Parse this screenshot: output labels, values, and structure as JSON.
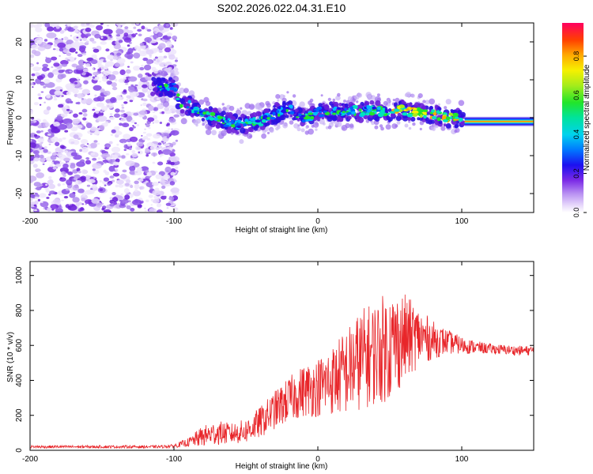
{
  "chart_data": [
    {
      "type": "heatmap",
      "title": "S202.2026.022.04.31.E10",
      "xlabel": "Height of straight line (km)",
      "ylabel": "Frequency (Hz)",
      "xlim": [
        -200,
        150
      ],
      "ylim": [
        -25,
        25
      ],
      "x_ticks": [
        -200,
        -100,
        0,
        100
      ],
      "y_ticks": [
        -20,
        -10,
        0,
        10,
        20
      ],
      "colorbar": {
        "label": "Normalized spectral amplitude",
        "range": [
          0.0,
          0.97
        ],
        "ticks": [
          0.0,
          0.2,
          0.4,
          0.6,
          0.8
        ]
      },
      "noise_region_x": [
        -200,
        -98
      ],
      "trace": {
        "x": [
          -115,
          -110,
          -100,
          -95,
          -90,
          -85,
          -80,
          -75,
          -70,
          -65,
          -60,
          -55,
          -50,
          -45,
          -40,
          -35,
          -30,
          -25,
          -20,
          -15,
          -10,
          -5,
          0,
          5,
          10,
          15,
          20,
          25,
          30,
          35,
          40,
          45,
          50,
          55,
          60,
          65,
          70,
          75,
          80,
          85,
          90,
          95,
          100,
          105,
          110,
          120,
          130,
          140,
          150
        ],
        "frequency": [
          8,
          8,
          8,
          3,
          3.5,
          2,
          1,
          0.5,
          0,
          -1,
          -1.5,
          -2,
          -1.5,
          -1,
          -1,
          0,
          1,
          2,
          2.5,
          1,
          0,
          0.5,
          1.5,
          1.5,
          2,
          1.5,
          1.5,
          2,
          1.5,
          2,
          2,
          1.5,
          1.5,
          2,
          2,
          1.5,
          1.5,
          1,
          1,
          0.5,
          0,
          0,
          -0.5,
          -1,
          -1,
          -1,
          -1,
          -1,
          -1
        ]
      }
    },
    {
      "type": "line",
      "title": "",
      "xlabel": "Height of straight line (km)",
      "ylabel": "SNR (10 * v/v)",
      "xlim": [
        -200,
        150
      ],
      "ylim": [
        0,
        1080
      ],
      "x_ticks": [
        -200,
        -100,
        0,
        100
      ],
      "y_ticks": [
        0,
        200,
        400,
        600,
        800,
        1000
      ],
      "series": [
        {
          "name": "SNR",
          "color": "#e8262a",
          "x": [
            -200,
            -150,
            -110,
            -100,
            -90,
            -80,
            -70,
            -60,
            -50,
            -40,
            -30,
            -20,
            -10,
            0,
            10,
            20,
            30,
            40,
            50,
            60,
            70,
            80,
            90,
            100,
            110,
            120,
            130,
            140,
            150
          ],
          "values": [
            20,
            20,
            20,
            25,
            45,
            80,
            100,
            95,
            110,
            160,
            230,
            290,
            340,
            360,
            400,
            450,
            520,
            560,
            600,
            640,
            650,
            630,
            620,
            600,
            590,
            580,
            575,
            570,
            570
          ],
          "noise_amplitude": [
            8,
            8,
            8,
            10,
            25,
            60,
            70,
            60,
            70,
            90,
            110,
            130,
            150,
            170,
            200,
            250,
            290,
            300,
            320,
            260,
            170,
            110,
            70,
            50,
            35,
            30,
            28,
            28,
            28
          ]
        }
      ]
    }
  ]
}
